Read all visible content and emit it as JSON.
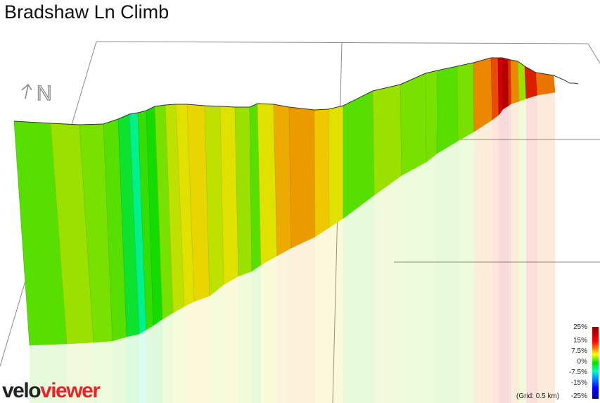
{
  "title": "Bradshaw Ln Climb",
  "brand": {
    "part1": "velo",
    "part2": "viewer"
  },
  "grid_note": "(Grid: 0.5 km)",
  "legend": {
    "labels": [
      "25%",
      "15%",
      "7.5%",
      "0%",
      "-7.5%",
      "-15%",
      "-25%"
    ]
  },
  "compass": "N",
  "chart_data": {
    "type": "area",
    "title": "Bradshaw Ln Climb",
    "xlabel": "",
    "ylabel": "",
    "grid": "0.5 km",
    "color_scale": {
      "min": -25,
      "max": 25,
      "unit": "%",
      "ticks": [
        25,
        15,
        7.5,
        0,
        -7.5,
        -15,
        -25
      ]
    },
    "segments_gradient_pct": [
      2,
      4,
      3,
      2,
      -1,
      -3,
      1,
      0,
      3,
      5,
      6,
      7,
      5,
      6,
      4,
      2,
      6,
      10,
      11,
      8,
      6,
      2,
      4,
      3,
      3,
      2,
      3,
      12,
      15,
      20,
      22,
      17,
      12,
      4,
      18,
      13
    ]
  }
}
